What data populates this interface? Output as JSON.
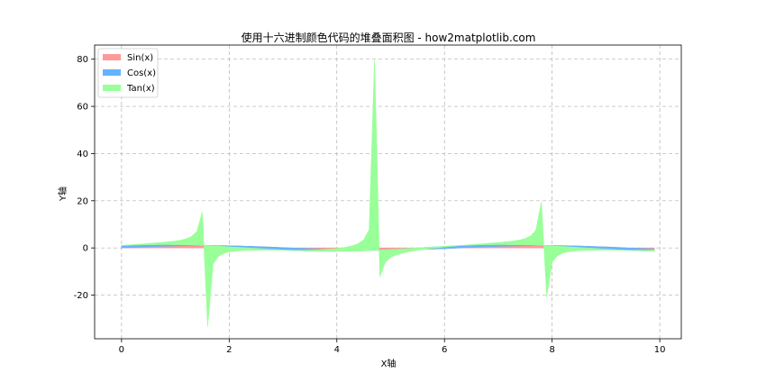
{
  "chart_data": {
    "type": "area",
    "stacked": true,
    "title": "使用十六进制颜色代码的堆叠面积图 - how2matplotlib.com",
    "xlabel": "X轴",
    "ylabel": "Y轴",
    "xlim": [
      -0.5,
      10.4
    ],
    "ylim": [
      -38.5,
      86
    ],
    "xticks": [
      0,
      2,
      4,
      6,
      8,
      10
    ],
    "yticks": [
      -20,
      0,
      20,
      40,
      60,
      80
    ],
    "grid": true,
    "legend_position": "upper-left",
    "x_domain": [
      0,
      9.9
    ],
    "x_step": 0.1,
    "series": [
      {
        "name": "Sin(x)",
        "color": "#FF9999",
        "function": "sin"
      },
      {
        "name": "Cos(x)",
        "color": "#66B2FF",
        "function": "cos"
      },
      {
        "name": "Tan(x)",
        "color": "#99FF99",
        "function": "tan"
      }
    ]
  }
}
